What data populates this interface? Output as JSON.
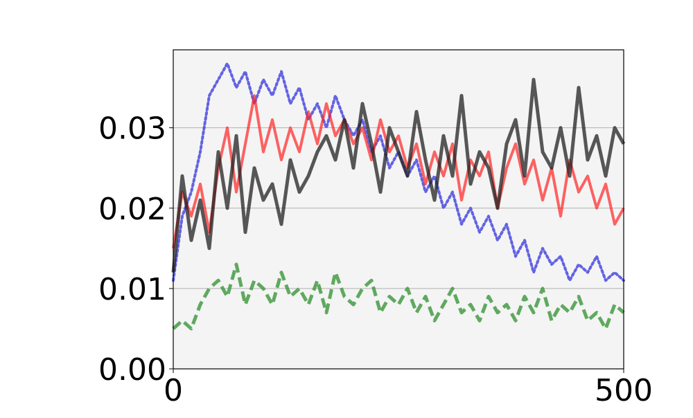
{
  "chart_data": {
    "type": "line",
    "x": [
      0,
      10,
      20,
      30,
      40,
      50,
      60,
      70,
      80,
      90,
      100,
      110,
      120,
      130,
      140,
      150,
      160,
      170,
      180,
      190,
      200,
      210,
      220,
      230,
      240,
      250,
      260,
      270,
      280,
      290,
      300,
      310,
      320,
      330,
      340,
      350,
      360,
      370,
      380,
      390,
      400,
      410,
      420,
      430,
      440,
      450,
      460,
      470,
      480,
      490,
      500
    ],
    "series": [
      {
        "color": "#3333dd",
        "dash": "dotted",
        "width": 4,
        "opacity": 0.75,
        "values": [
          0.011,
          0.019,
          0.022,
          0.027,
          0.034,
          0.036,
          0.038,
          0.035,
          0.037,
          0.033,
          0.036,
          0.034,
          0.037,
          0.033,
          0.035,
          0.031,
          0.033,
          0.03,
          0.034,
          0.031,
          0.029,
          0.031,
          0.027,
          0.029,
          0.025,
          0.027,
          0.024,
          0.026,
          0.022,
          0.024,
          0.02,
          0.022,
          0.018,
          0.02,
          0.017,
          0.019,
          0.016,
          0.018,
          0.014,
          0.016,
          0.012,
          0.015,
          0.013,
          0.014,
          0.011,
          0.013,
          0.012,
          0.014,
          0.011,
          0.012,
          0.011
        ]
      },
      {
        "color": "#3a963a",
        "dash": "dashed",
        "width": 5,
        "opacity": 0.8,
        "values": [
          0.005,
          0.006,
          0.005,
          0.008,
          0.01,
          0.011,
          0.009,
          0.013,
          0.008,
          0.011,
          0.01,
          0.008,
          0.012,
          0.009,
          0.01,
          0.008,
          0.011,
          0.007,
          0.012,
          0.009,
          0.008,
          0.01,
          0.011,
          0.007,
          0.009,
          0.008,
          0.01,
          0.007,
          0.009,
          0.006,
          0.008,
          0.01,
          0.007,
          0.008,
          0.006,
          0.009,
          0.007,
          0.008,
          0.006,
          0.009,
          0.007,
          0.01,
          0.006,
          0.008,
          0.007,
          0.009,
          0.006,
          0.007,
          0.005,
          0.008,
          0.007
        ]
      },
      {
        "color": "#ff2222",
        "dash": "solid",
        "width": 4,
        "opacity": 0.7,
        "values": [
          0.015,
          0.022,
          0.019,
          0.023,
          0.017,
          0.025,
          0.03,
          0.022,
          0.028,
          0.034,
          0.027,
          0.031,
          0.026,
          0.03,
          0.027,
          0.032,
          0.028,
          0.033,
          0.029,
          0.031,
          0.028,
          0.03,
          0.026,
          0.031,
          0.027,
          0.029,
          0.025,
          0.028,
          0.023,
          0.027,
          0.024,
          0.028,
          0.021,
          0.026,
          0.024,
          0.027,
          0.02,
          0.025,
          0.028,
          0.023,
          0.026,
          0.021,
          0.025,
          0.019,
          0.026,
          0.022,
          0.024,
          0.02,
          0.023,
          0.018,
          0.02
        ]
      },
      {
        "color": "#222222",
        "dash": "solid",
        "width": 5,
        "opacity": 0.75,
        "values": [
          0.012,
          0.024,
          0.016,
          0.021,
          0.015,
          0.027,
          0.02,
          0.029,
          0.017,
          0.025,
          0.021,
          0.023,
          0.018,
          0.026,
          0.022,
          0.024,
          0.027,
          0.029,
          0.026,
          0.031,
          0.025,
          0.033,
          0.028,
          0.022,
          0.03,
          0.027,
          0.024,
          0.032,
          0.026,
          0.021,
          0.029,
          0.024,
          0.034,
          0.023,
          0.027,
          0.025,
          0.02,
          0.028,
          0.031,
          0.024,
          0.036,
          0.027,
          0.025,
          0.03,
          0.024,
          0.035,
          0.026,
          0.029,
          0.024,
          0.03,
          0.028
        ]
      }
    ],
    "xlim": [
      0,
      500
    ],
    "xticks": [
      0,
      500
    ],
    "ylim": [
      0,
      0.0397
    ],
    "yticks": [
      {
        "value": 0,
        "label": "0.00"
      },
      0.01,
      0.02,
      0.03
    ],
    "grid": true,
    "background": "#f4f4f4"
  }
}
